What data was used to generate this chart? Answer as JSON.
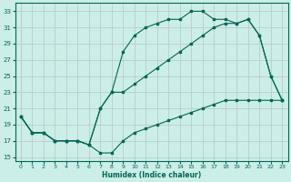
{
  "xlabel": "Humidex (Indice chaleur)",
  "bg_color": "#cceee8",
  "grid_color": "#bbcccc",
  "line_color": "#006655",
  "xlim": [
    -0.5,
    23.5
  ],
  "ylim": [
    14.5,
    34
  ],
  "yticks": [
    15,
    17,
    19,
    21,
    23,
    25,
    27,
    29,
    31,
    33
  ],
  "xticks": [
    0,
    1,
    2,
    3,
    4,
    5,
    6,
    7,
    8,
    9,
    10,
    11,
    12,
    13,
    14,
    15,
    16,
    17,
    18,
    19,
    20,
    21,
    22,
    23
  ],
  "line_upper_x": [
    0,
    1,
    2,
    3,
    4,
    5,
    6,
    7,
    8,
    9,
    10,
    11,
    12,
    13,
    14,
    15,
    16,
    17,
    18,
    19,
    20,
    21,
    22,
    23
  ],
  "line_upper_y": [
    20,
    18,
    18,
    17,
    17,
    17,
    16.5,
    21,
    23,
    28,
    30,
    31,
    31.5,
    32,
    32,
    33,
    33,
    32,
    32,
    31.5,
    32,
    30,
    25,
    22
  ],
  "line_mid_x": [
    0,
    1,
    2,
    3,
    4,
    5,
    6,
    7,
    8,
    9,
    10,
    11,
    12,
    13,
    14,
    15,
    16,
    17,
    18,
    19,
    20,
    21,
    22,
    23
  ],
  "line_mid_y": [
    20,
    18,
    18,
    17,
    17,
    17,
    16.5,
    21,
    23,
    23,
    24,
    25,
    26,
    27,
    28,
    29,
    30,
    31,
    31.5,
    31.5,
    32,
    30,
    25,
    22
  ],
  "line_lower_x": [
    0,
    1,
    2,
    3,
    4,
    5,
    6,
    7,
    8,
    9,
    10,
    11,
    12,
    13,
    14,
    15,
    16,
    17,
    18,
    19,
    20,
    21,
    22,
    23
  ],
  "line_lower_y": [
    20,
    18,
    18,
    17,
    17,
    17,
    16.5,
    15.5,
    15.5,
    17,
    18,
    18.5,
    19,
    19.5,
    20,
    20.5,
    21,
    21.5,
    22,
    22,
    22,
    22,
    22,
    22
  ]
}
